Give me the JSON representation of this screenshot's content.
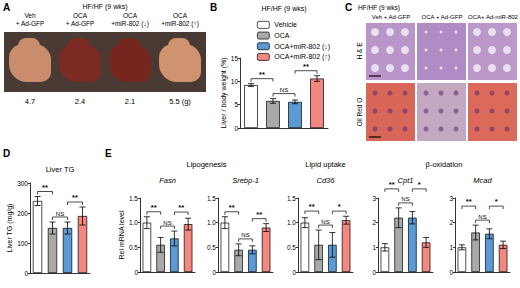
{
  "panels": {
    "A": {
      "panel": "A",
      "title": "HF/HF (9 wks)",
      "columns": [
        [
          "Veh",
          "+ Ad-GFP"
        ],
        [
          "OCA",
          "+ Ad-GFP"
        ],
        [
          "OCA",
          "+miR-802 (↓)"
        ],
        [
          "OCA",
          "+miR-802 (↑)"
        ]
      ],
      "liver_weights": [
        4.7,
        2.4,
        2.1,
        5.5
      ],
      "weight_unit": "(g)"
    },
    "C": {
      "panel": "C",
      "title": "HF/HF (9 wks)",
      "columns": [
        "Veh + Ad-GFP",
        "OCA + Ad-GFP",
        "OCA+ Ad-miR-802"
      ],
      "rows": [
        "H & E",
        "Oil Red O"
      ]
    },
    "E": {
      "panel": "E",
      "y_label": "Rel mRNA level",
      "groups": [
        {
          "label": "Lipogenesis",
          "charts": [
            "Fasn",
            "Srebp-1"
          ]
        },
        {
          "label": "Lipid uptake",
          "charts": [
            "Cd36"
          ]
        },
        {
          "label": "β-oxidation",
          "charts": [
            "Cpt1",
            "Mcad"
          ]
        }
      ]
    }
  },
  "chart_data": [
    {
      "type": "bar",
      "panel": "B",
      "title": "HF/HF (9 wks)",
      "y_label": "Liver / body weight (%)",
      "categories": [
        null,
        null,
        null,
        null
      ],
      "legend_labels": [
        "Vehicle",
        "OCA",
        "OCA+miR-802 (↓)",
        "OCA+miR-802 (↑)"
      ],
      "legend": "top",
      "values": [
        9.2,
        5.8,
        5.6,
        10.6
      ],
      "errors": [
        0.3,
        0.5,
        0.4,
        0.6
      ],
      "colors": [
        "#ffffff",
        "#a9a9a9",
        "#5b9bd5",
        "#f4877f"
      ],
      "ylim": [
        0,
        15
      ],
      "yticks": [
        0,
        5,
        10,
        15
      ],
      "grid": false,
      "tick_labels": "y",
      "comparisons": [
        {
          "bars": [
            1,
            2
          ],
          "label": "NS"
        },
        {
          "bars": [
            0,
            1
          ],
          "label": "**"
        },
        {
          "bars": [
            2,
            3
          ],
          "label": "**"
        }
      ]
    },
    {
      "type": "bar",
      "panel": "D",
      "title": "Liver TG",
      "y_label": "Liver TG (mg/g)",
      "categories": [
        null,
        null,
        null,
        null
      ],
      "values": [
        240,
        150,
        150,
        190
      ],
      "errors": [
        15,
        20,
        20,
        30
      ],
      "colors": [
        "#ffffff",
        "#a9a9a9",
        "#5b9bd5",
        "#f4877f"
      ],
      "ylim": [
        0,
        300
      ],
      "yticks": [
        0,
        100,
        200,
        300
      ],
      "grid": false,
      "tick_labels": "y",
      "comparisons": [
        {
          "bars": [
            1,
            2
          ],
          "label": "NS"
        },
        {
          "bars": [
            0,
            1
          ],
          "label": "**"
        },
        {
          "bars": [
            2,
            3
          ],
          "label": "**"
        }
      ]
    },
    {
      "type": "bar",
      "title": "Fasn",
      "categories": [
        null,
        null,
        null,
        null
      ],
      "values": [
        1.0,
        0.55,
        0.68,
        0.97
      ],
      "errors": [
        0.12,
        0.15,
        0.15,
        0.12
      ],
      "colors": [
        "#ffffff",
        "#a9a9a9",
        "#5b9bd5",
        "#f4877f"
      ],
      "ylim": [
        0,
        1.5
      ],
      "yticks": [
        0,
        0.5,
        {
          "value": 1,
          "label": "1.0"
        },
        1.5
      ],
      "grid": false,
      "tick_labels": "y",
      "comparisons": [
        {
          "bars": [
            1,
            2
          ],
          "label": "NS"
        },
        {
          "bars": [
            0,
            1
          ],
          "label": "**"
        },
        {
          "bars": [
            2,
            3
          ],
          "label": "**"
        }
      ]
    },
    {
      "type": "bar",
      "title": "Srebp-1",
      "categories": [
        null,
        null,
        null,
        null
      ],
      "values": [
        1.0,
        0.45,
        0.45,
        0.9
      ],
      "errors": [
        0.12,
        0.12,
        0.08,
        0.08
      ],
      "colors": [
        "#ffffff",
        "#a9a9a9",
        "#5b9bd5",
        "#f4877f"
      ],
      "ylim": [
        0,
        1.5
      ],
      "yticks": [
        0,
        0.5,
        {
          "value": 1,
          "label": "1.0"
        },
        1.5
      ],
      "grid": false,
      "tick_labels": "y",
      "comparisons": [
        {
          "bars": [
            1,
            2
          ],
          "label": "NS"
        },
        {
          "bars": [
            0,
            1
          ],
          "label": "**"
        },
        {
          "bars": [
            2,
            3
          ],
          "label": "**"
        }
      ]
    },
    {
      "type": "bar",
      "title": "Cd36",
      "categories": [
        null,
        null,
        null,
        null
      ],
      "values": [
        1.0,
        0.55,
        0.55,
        1.05
      ],
      "errors": [
        0.1,
        0.3,
        0.25,
        0.08
      ],
      "colors": [
        "#ffffff",
        "#a9a9a9",
        "#5b9bd5",
        "#f4877f"
      ],
      "ylim": [
        0,
        1.5
      ],
      "yticks": [
        0,
        0.5,
        {
          "value": 1,
          "label": "1.0"
        },
        1.5
      ],
      "grid": false,
      "tick_labels": "y",
      "comparisons": [
        {
          "bars": [
            1,
            2
          ],
          "label": "NS"
        },
        {
          "bars": [
            0,
            1
          ],
          "label": "**"
        },
        {
          "bars": [
            2,
            3
          ],
          "label": "*"
        }
      ]
    },
    {
      "type": "bar",
      "title": "Cpt1",
      "categories": [
        null,
        null,
        null,
        null
      ],
      "values": [
        1.0,
        2.2,
        2.2,
        1.2
      ],
      "errors": [
        0.15,
        0.4,
        0.25,
        0.2
      ],
      "colors": [
        "#ffffff",
        "#a9a9a9",
        "#5b9bd5",
        "#f4877f"
      ],
      "ylim": [
        0,
        3
      ],
      "yticks": [
        0,
        1,
        2,
        3
      ],
      "grid": false,
      "tick_labels": "y",
      "comparisons": [
        {
          "bars": [
            1,
            2
          ],
          "label": "NS"
        },
        {
          "bars": [
            0,
            1
          ],
          "label": "**"
        },
        {
          "bars": [
            2,
            3
          ],
          "label": "*"
        }
      ]
    },
    {
      "type": "bar",
      "title": "Mcad",
      "categories": [
        null,
        null,
        null,
        null
      ],
      "values": [
        1.0,
        1.6,
        1.55,
        1.1
      ],
      "errors": [
        0.1,
        0.3,
        0.2,
        0.15
      ],
      "colors": [
        "#ffffff",
        "#a9a9a9",
        "#5b9bd5",
        "#f4877f"
      ],
      "ylim": [
        0,
        3
      ],
      "yticks": [
        0,
        1,
        2,
        3
      ],
      "grid": false,
      "tick_labels": "y",
      "comparisons": [
        {
          "bars": [
            1,
            2
          ],
          "label": "NS"
        },
        {
          "bars": [
            0,
            1
          ],
          "label": "**"
        },
        {
          "bars": [
            2,
            3
          ],
          "label": "*"
        }
      ]
    }
  ]
}
